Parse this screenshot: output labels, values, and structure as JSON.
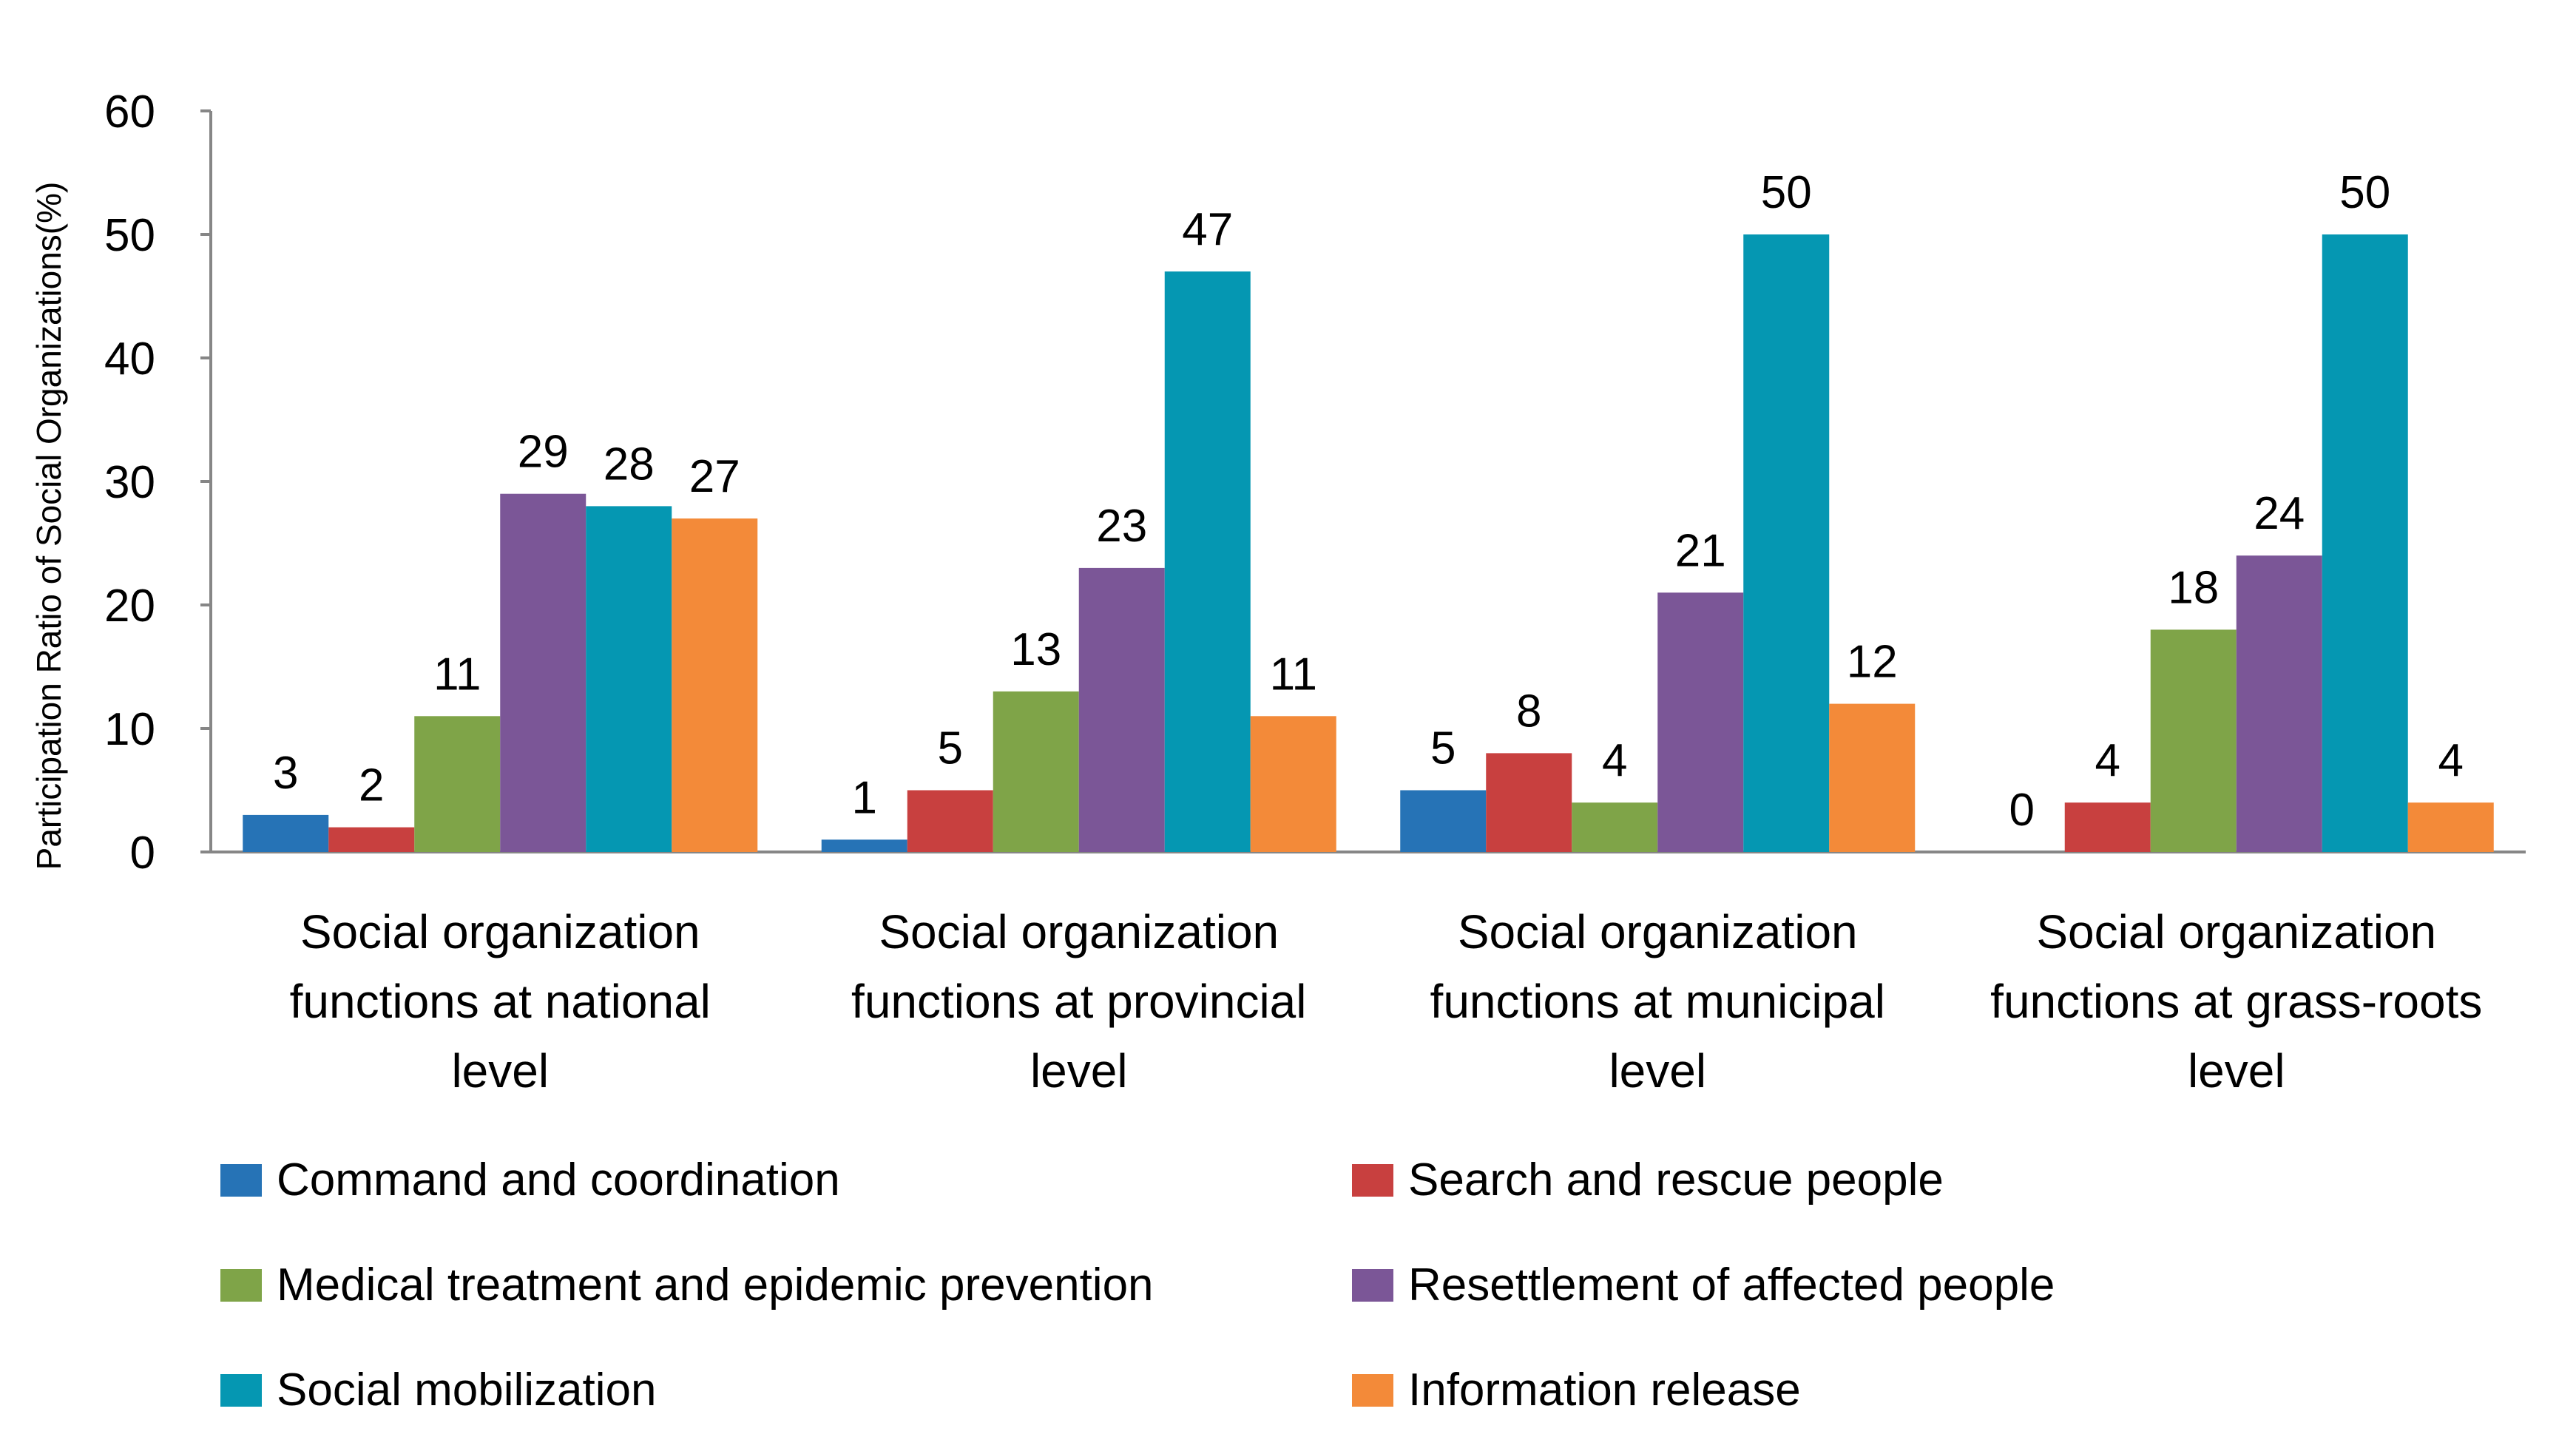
{
  "chart_data": {
    "type": "bar",
    "title": "",
    "xlabel": "",
    "ylabel": "Participation Ratio of Social Organizations(%)",
    "ylim": [
      0,
      60
    ],
    "yticks": [
      0,
      10,
      20,
      30,
      40,
      50,
      60
    ],
    "grid": false,
    "legend_position": "bottom",
    "categories": [
      [
        "Social organization",
        "functions at national",
        "level"
      ],
      [
        "Social organization",
        "functions at provincial",
        "level"
      ],
      [
        "Social organization",
        "functions at municipal",
        "level"
      ],
      [
        "Social organization",
        "functions at grass-roots",
        "level"
      ]
    ],
    "series": [
      {
        "name": "Command and coordination",
        "color": "#2673b6",
        "values": [
          3,
          1,
          5,
          0
        ]
      },
      {
        "name": "Search and rescue people",
        "color": "#c8403f",
        "values": [
          2,
          5,
          8,
          4
        ]
      },
      {
        "name": "Medical treatment and epidemic prevention",
        "color": "#7fa448",
        "values": [
          11,
          13,
          4,
          18
        ]
      },
      {
        "name": "Resettlement of affected people",
        "color": "#7b5697",
        "values": [
          29,
          23,
          21,
          24
        ]
      },
      {
        "name": "Social mobilization",
        "color": "#0597b2",
        "values": [
          28,
          47,
          50,
          50
        ]
      },
      {
        "name": "Information release",
        "color": "#f38a39",
        "values": [
          27,
          11,
          12,
          4
        ]
      }
    ]
  }
}
